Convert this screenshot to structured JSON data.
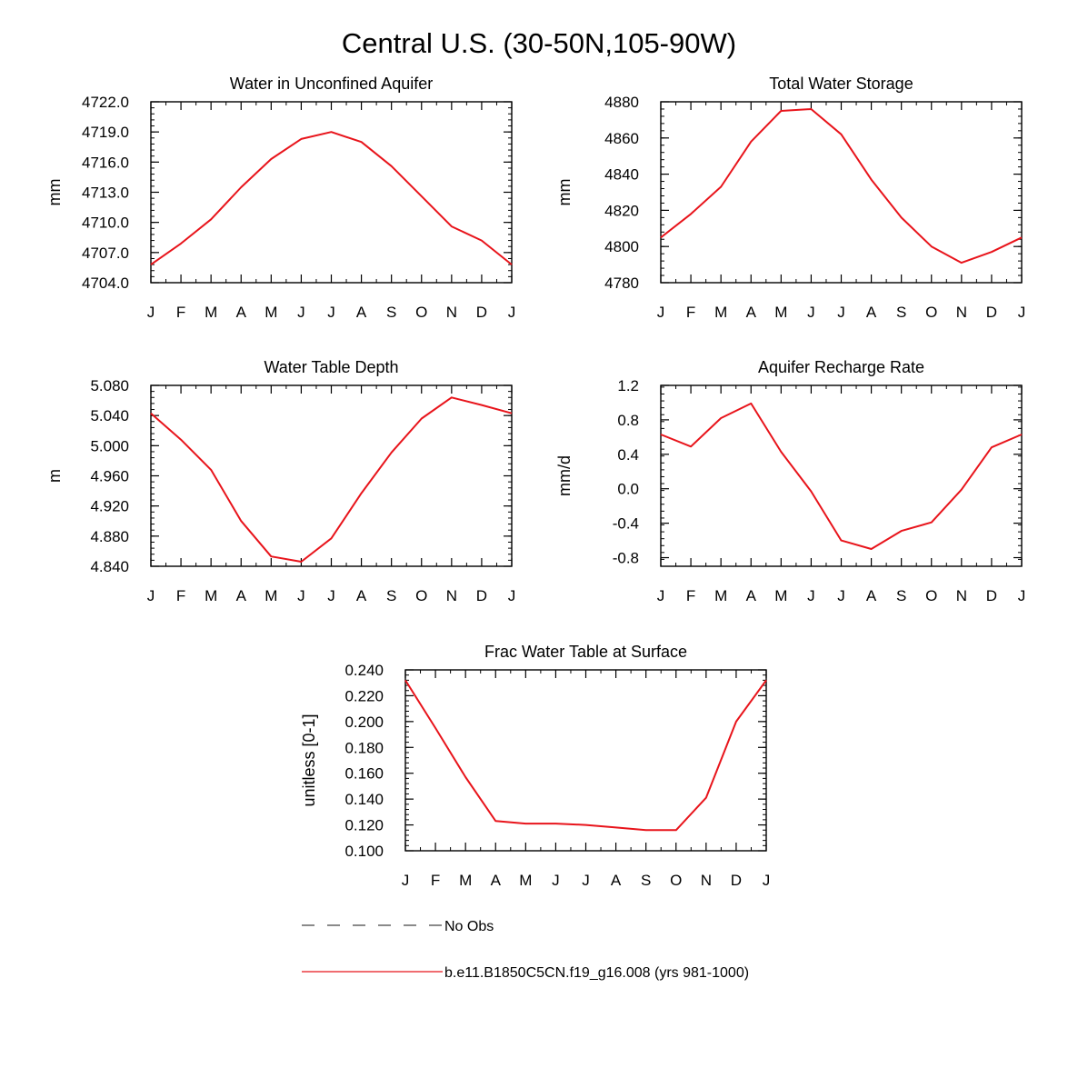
{
  "figure": {
    "title": "Central U.S. (30-50N,105-90W)"
  },
  "months": [
    "J",
    "F",
    "M",
    "A",
    "M",
    "J",
    "J",
    "A",
    "S",
    "O",
    "N",
    "D",
    "J"
  ],
  "chart_data": [
    {
      "type": "line",
      "title": "Water in Unconfined Aquifer",
      "ylabel": "mm",
      "xlabel": "",
      "ylim": [
        4704.0,
        4722.0
      ],
      "yticks": [
        "4704.0",
        "4707.0",
        "4710.0",
        "4713.0",
        "4716.0",
        "4719.0",
        "4722.0"
      ],
      "series": [
        {
          "color": "#e8141b",
          "values": [
            4705.8,
            4707.9,
            4710.3,
            4713.5,
            4716.3,
            4718.3,
            4719.0,
            4718.0,
            4715.6,
            4712.6,
            4709.6,
            4708.2,
            4705.8
          ]
        }
      ]
    },
    {
      "type": "line",
      "title": "Total Water Storage",
      "ylabel": "mm",
      "xlabel": "",
      "ylim": [
        4780,
        4880
      ],
      "yticks": [
        "4780",
        "4800",
        "4820",
        "4840",
        "4860",
        "4880"
      ],
      "series": [
        {
          "color": "#e8141b",
          "values": [
            4805,
            4818,
            4833,
            4858,
            4875,
            4876,
            4862,
            4837,
            4816,
            4800,
            4791,
            4797,
            4805
          ]
        }
      ]
    },
    {
      "type": "line",
      "title": "Water Table Depth",
      "ylabel": "m",
      "xlabel": "",
      "ylim": [
        4.84,
        5.08
      ],
      "yticks": [
        "4.840",
        "4.880",
        "4.920",
        "4.960",
        "5.000",
        "5.040",
        "5.080"
      ],
      "series": [
        {
          "color": "#e8141b",
          "values": [
            5.043,
            5.008,
            4.968,
            4.9,
            4.853,
            4.846,
            4.877,
            4.937,
            4.991,
            5.036,
            5.064,
            5.054,
            5.043
          ]
        }
      ]
    },
    {
      "type": "line",
      "title": "Aquifer Recharge Rate",
      "ylabel": "mm/d",
      "xlabel": "",
      "ylim": [
        -0.9,
        1.2
      ],
      "yticks": [
        "-0.8",
        "-0.4",
        "0.0",
        "0.4",
        "0.8",
        "1.2"
      ],
      "series": [
        {
          "color": "#e8141b",
          "values": [
            0.63,
            0.49,
            0.82,
            0.99,
            0.43,
            -0.03,
            -0.6,
            -0.7,
            -0.49,
            -0.39,
            -0.01,
            0.48,
            0.63
          ]
        }
      ]
    },
    {
      "type": "line",
      "title": "Frac Water Table at Surface",
      "ylabel": "unitless [0-1]",
      "xlabel": "",
      "ylim": [
        0.1,
        0.24
      ],
      "yticks": [
        "0.100",
        "0.120",
        "0.140",
        "0.160",
        "0.180",
        "0.200",
        "0.220",
        "0.240"
      ],
      "series": [
        {
          "color": "#e8141b",
          "values": [
            0.232,
            0.195,
            0.157,
            0.123,
            0.121,
            0.121,
            0.12,
            0.118,
            0.116,
            0.116,
            0.141,
            0.2,
            0.232
          ]
        }
      ]
    }
  ],
  "legend": {
    "placement": "bottom",
    "items": [
      {
        "label": "No Obs",
        "style": "dashed",
        "color": "#444444"
      },
      {
        "label": "b.e11.B1850C5CN.f19_g16.008 (yrs 981-1000)",
        "style": "solid",
        "color": "#e8141b"
      }
    ]
  }
}
